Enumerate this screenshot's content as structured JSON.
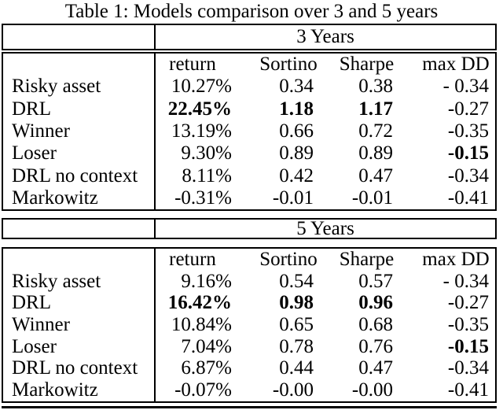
{
  "title": "Table 1: Models comparison over 3 and 5 years",
  "colors": {
    "text": "#000000",
    "background": "#ffffff",
    "rule": "#000000"
  },
  "table": {
    "sections": [
      {
        "band_label": "3 Years",
        "columns": [
          "return",
          "Sortino",
          "Sharpe",
          "max DD"
        ],
        "rows": [
          {
            "label": "Risky asset",
            "values": [
              "10.27%",
              "0.34",
              "0.38",
              "- 0.34"
            ],
            "bold": [
              false,
              false,
              false,
              false
            ]
          },
          {
            "label": "DRL",
            "values": [
              "22.45%",
              "1.18",
              "1.17",
              "-0.27"
            ],
            "bold": [
              true,
              true,
              true,
              false
            ]
          },
          {
            "label": "Winner",
            "values": [
              "13.19%",
              "0.66",
              "0.72",
              "-0.35"
            ],
            "bold": [
              false,
              false,
              false,
              false
            ]
          },
          {
            "label": "Loser",
            "values": [
              "9.30%",
              "0.89",
              "0.89",
              "-0.15"
            ],
            "bold": [
              false,
              false,
              false,
              true
            ]
          },
          {
            "label": "DRL no context",
            "values": [
              "8.11%",
              "0.42",
              "0.47",
              "-0.34"
            ],
            "bold": [
              false,
              false,
              false,
              false
            ]
          },
          {
            "label": "Markowitz",
            "values": [
              "-0.31%",
              "-0.01",
              "-0.01",
              "-0.41"
            ],
            "bold": [
              false,
              false,
              false,
              false
            ]
          }
        ]
      },
      {
        "band_label": "5 Years",
        "columns": [
          "return",
          "Sortino",
          "Sharpe",
          "max DD"
        ],
        "rows": [
          {
            "label": "Risky asset",
            "values": [
              "9.16%",
              "0.54",
              "0.57",
              "- 0.34"
            ],
            "bold": [
              false,
              false,
              false,
              false
            ]
          },
          {
            "label": "DRL",
            "values": [
              "16.42%",
              "0.98",
              "0.96",
              "-0.27"
            ],
            "bold": [
              true,
              true,
              true,
              false
            ]
          },
          {
            "label": "Winner",
            "values": [
              "10.84%",
              "0.65",
              "0.68",
              "-0.35"
            ],
            "bold": [
              false,
              false,
              false,
              false
            ]
          },
          {
            "label": "Loser",
            "values": [
              "7.04%",
              "0.78",
              "0.76",
              "-0.15"
            ],
            "bold": [
              false,
              false,
              false,
              true
            ]
          },
          {
            "label": "DRL no context",
            "values": [
              "6.87%",
              "0.44",
              "0.47",
              "-0.34"
            ],
            "bold": [
              false,
              false,
              false,
              false
            ]
          },
          {
            "label": "Markowitz",
            "values": [
              "-0.07%",
              "-0.00",
              "-0.00",
              "-0.41"
            ],
            "bold": [
              false,
              false,
              false,
              false
            ]
          }
        ]
      }
    ]
  }
}
